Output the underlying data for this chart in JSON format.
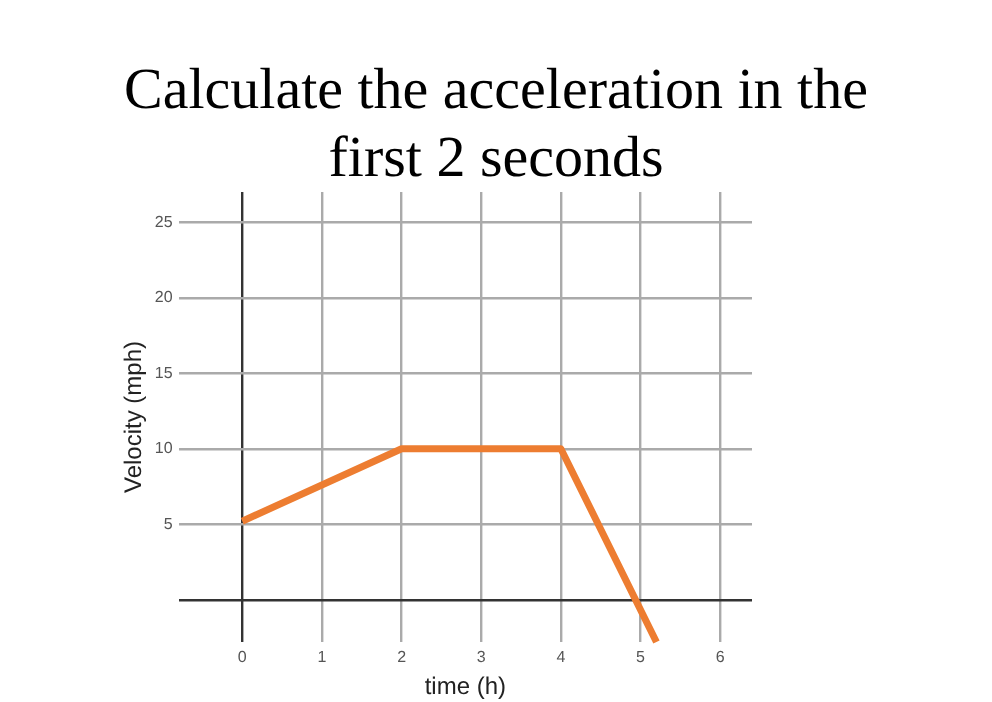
{
  "chart_data": {
    "type": "line",
    "title": "Calculate the acceleration in the first 2 seconds",
    "xlabel": "time (h)",
    "ylabel": "Velocity (mph)",
    "x": [
      0,
      2,
      4,
      5.2
    ],
    "series": [
      {
        "color": "#ed7d31",
        "values": [
          5.2,
          10,
          10,
          -2.8
        ]
      }
    ],
    "xlim": [
      -0.8,
      6.4
    ],
    "xticks": [
      0,
      1,
      2,
      3,
      4,
      5,
      6
    ],
    "ylim": [
      -2.8,
      27
    ],
    "yticks": [
      {
        "value": 0,
        "label": null
      },
      5,
      10,
      15,
      20,
      25
    ],
    "grid": true,
    "legend": false,
    "marker": "none",
    "line_style": "solid"
  }
}
